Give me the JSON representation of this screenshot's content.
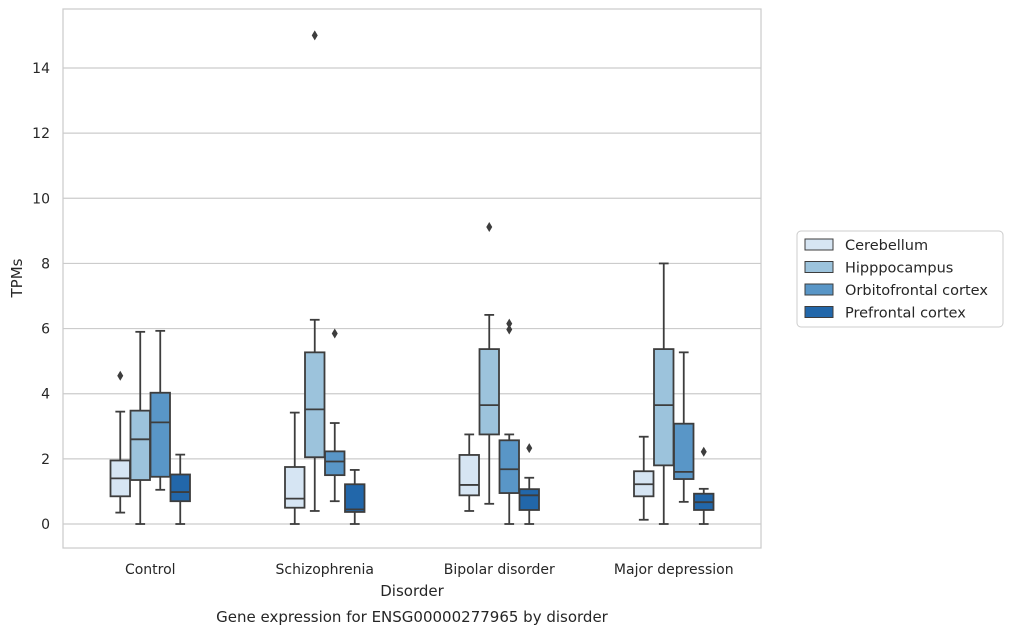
{
  "chart_data": {
    "type": "box",
    "caption": "Gene expression for ENSG00000277965 by disorder",
    "xlabel": "Disorder",
    "ylabel": "TPMs",
    "ylim": [
      -0.7,
      15.8
    ],
    "yticks": [
      0,
      2,
      4,
      6,
      8,
      10,
      12,
      14
    ],
    "grid": true,
    "legend_position": "right",
    "categories": [
      "Control",
      "Schizophrenia",
      "Bipolar disorder",
      "Major depression"
    ],
    "series": [
      {
        "name": "Cerebellum",
        "color": "#d6e5f3",
        "boxes": [
          {
            "whisker_low": 0.35,
            "q1": 0.85,
            "median": 1.4,
            "q3": 1.95,
            "whisker_high": 3.45,
            "outliers": [
              4.55
            ]
          },
          {
            "whisker_low": 0.0,
            "q1": 0.5,
            "median": 0.78,
            "q3": 1.75,
            "whisker_high": 3.42,
            "outliers": []
          },
          {
            "whisker_low": 0.4,
            "q1": 0.88,
            "median": 1.2,
            "q3": 2.12,
            "whisker_high": 2.75,
            "outliers": []
          },
          {
            "whisker_low": 0.13,
            "q1": 0.85,
            "median": 1.22,
            "q3": 1.62,
            "whisker_high": 2.68,
            "outliers": []
          }
        ]
      },
      {
        "name": "Hipppocampus",
        "color": "#9cc3dc",
        "boxes": [
          {
            "whisker_low": 0.0,
            "q1": 1.35,
            "median": 2.6,
            "q3": 3.48,
            "whisker_high": 5.9,
            "outliers": []
          },
          {
            "whisker_low": 0.4,
            "q1": 2.05,
            "median": 3.52,
            "q3": 5.27,
            "whisker_high": 6.27,
            "outliers": [
              15.0
            ]
          },
          {
            "whisker_low": 0.62,
            "q1": 2.75,
            "median": 3.65,
            "q3": 5.37,
            "whisker_high": 6.42,
            "outliers": [
              9.12
            ]
          },
          {
            "whisker_low": 0.0,
            "q1": 1.8,
            "median": 3.65,
            "q3": 5.37,
            "whisker_high": 8.0,
            "outliers": []
          }
        ]
      },
      {
        "name": "Orbitofrontal cortex",
        "color": "#5996c7",
        "boxes": [
          {
            "whisker_low": 1.05,
            "q1": 1.45,
            "median": 3.12,
            "q3": 4.03,
            "whisker_high": 5.93,
            "outliers": []
          },
          {
            "whisker_low": 0.7,
            "q1": 1.5,
            "median": 1.92,
            "q3": 2.23,
            "whisker_high": 3.1,
            "outliers": [
              5.85
            ]
          },
          {
            "whisker_low": 0.0,
            "q1": 0.95,
            "median": 1.68,
            "q3": 2.57,
            "whisker_high": 2.75,
            "outliers": [
              6.15,
              5.97
            ]
          },
          {
            "whisker_low": 0.68,
            "q1": 1.38,
            "median": 1.6,
            "q3": 3.08,
            "whisker_high": 5.27,
            "outliers": []
          }
        ]
      },
      {
        "name": "Prefrontal cortex",
        "color": "#2267aa",
        "boxes": [
          {
            "whisker_low": 0.0,
            "q1": 0.7,
            "median": 0.98,
            "q3": 1.52,
            "whisker_high": 2.13,
            "outliers": []
          },
          {
            "whisker_low": 0.0,
            "q1": 0.37,
            "median": 0.45,
            "q3": 1.22,
            "whisker_high": 1.66,
            "outliers": []
          },
          {
            "whisker_low": 0.0,
            "q1": 0.43,
            "median": 0.88,
            "q3": 1.07,
            "whisker_high": 1.42,
            "outliers": [
              2.33
            ]
          },
          {
            "whisker_low": 0.0,
            "q1": 0.43,
            "median": 0.67,
            "q3": 0.93,
            "whisker_high": 1.08,
            "outliers": [
              2.22
            ]
          }
        ]
      }
    ]
  }
}
